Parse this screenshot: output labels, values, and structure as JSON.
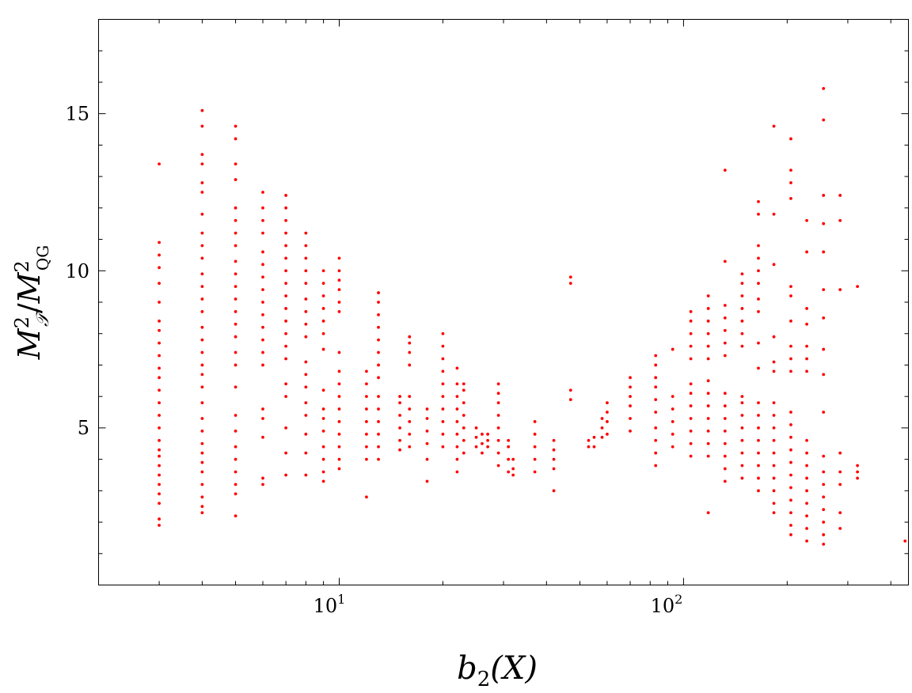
{
  "chart_data": {
    "type": "scatter",
    "title": "",
    "xlabel": {
      "base": "b",
      "sub": "2",
      "rest": "(X)"
    },
    "ylabel": {
      "num": "M",
      "num_sup": "2",
      "num_sub": "𝒯",
      "den": "M",
      "den_sup": "2",
      "den_sub": "QG"
    },
    "x_scale": "log",
    "xlim": [
      2,
      450
    ],
    "ylim": [
      0,
      18
    ],
    "grid": false,
    "x_ticks": [
      {
        "value": 10,
        "base": "10",
        "exp": "1"
      },
      {
        "value": 100,
        "base": "10",
        "exp": "2"
      }
    ],
    "y_ticks": [
      {
        "value": 5,
        "label": "5"
      },
      {
        "value": 10,
        "label": "10"
      },
      {
        "value": 15,
        "label": "15"
      }
    ],
    "marker_color": "#ff0000",
    "series": [
      {
        "columns": [
          {
            "x": 3,
            "values": [
              1.9,
              2.1,
              2.6,
              2.9,
              3.2,
              3.5,
              3.8,
              4.1,
              4.3,
              4.6,
              5.0,
              5.4,
              5.8,
              6.2,
              6.6,
              6.9,
              7.3,
              7.7,
              8.1,
              8.4,
              9.0,
              9.6,
              10.1,
              10.5,
              10.9,
              13.4
            ]
          },
          {
            "x": 4,
            "values": [
              2.3,
              2.5,
              2.8,
              3.2,
              3.6,
              3.9,
              4.2,
              4.5,
              4.9,
              5.3,
              5.8,
              6.3,
              6.7,
              7.0,
              7.4,
              7.8,
              8.2,
              8.7,
              9.1,
              9.5,
              9.9,
              10.4,
              10.8,
              11.2,
              11.8,
              12.5,
              12.8,
              13.4,
              13.7,
              14.6,
              15.1
            ]
          },
          {
            "x": 5,
            "values": [
              2.2,
              2.9,
              3.2,
              3.6,
              4.0,
              4.4,
              4.9,
              5.4,
              6.3,
              7.0,
              7.4,
              7.9,
              8.3,
              8.7,
              9.1,
              9.5,
              9.9,
              10.3,
              10.8,
              11.2,
              11.6,
              12.0,
              12.9,
              13.4,
              14.2,
              14.6
            ]
          },
          {
            "x": 6,
            "values": [
              3.2,
              3.4,
              4.7,
              5.3,
              5.6,
              7.0,
              7.4,
              7.8,
              8.2,
              8.6,
              9.0,
              9.4,
              9.8,
              10.2,
              10.6,
              11.2,
              11.6,
              12.0,
              12.5
            ]
          },
          {
            "x": 7,
            "values": [
              3.5,
              4.2,
              5.0,
              6.0,
              6.4,
              7.2,
              7.6,
              8.0,
              8.4,
              8.8,
              9.2,
              9.6,
              10.0,
              10.4,
              10.8,
              11.2,
              11.6,
              12.0,
              12.4
            ]
          },
          {
            "x": 8,
            "values": [
              3.5,
              4.2,
              4.8,
              5.4,
              5.8,
              6.3,
              6.7,
              7.1,
              7.9,
              8.3,
              8.7,
              9.1,
              9.6,
              10.0,
              10.4,
              10.8,
              11.2
            ]
          },
          {
            "x": 9,
            "values": [
              3.3,
              3.6,
              4.0,
              4.4,
              4.9,
              5.3,
              5.6,
              6.2,
              7.5,
              8.0,
              8.4,
              8.8,
              9.2,
              9.6,
              10.0
            ]
          },
          {
            "x": 10,
            "values": [
              3.7,
              4.0,
              4.4,
              4.8,
              5.2,
              5.6,
              6.0,
              6.4,
              6.8,
              7.4,
              8.7,
              9.0,
              9.4,
              9.7,
              10.0,
              10.4
            ]
          },
          {
            "x": 12,
            "values": [
              2.8,
              4.0,
              4.4,
              4.8,
              5.2,
              5.6,
              6.0,
              6.4,
              6.8
            ]
          },
          {
            "x": 13,
            "values": [
              4.0,
              4.4,
              4.8,
              5.2,
              5.6,
              6.0,
              6.6,
              7.0,
              7.4,
              7.8,
              8.2,
              8.6,
              9.0,
              9.3
            ]
          },
          {
            "x": 15,
            "values": [
              4.3,
              4.6,
              5.0,
              5.4,
              5.8,
              6.0
            ]
          },
          {
            "x": 16,
            "values": [
              4.4,
              4.8,
              5.2,
              5.6,
              6.0,
              7.0,
              7.4,
              7.7,
              7.9
            ]
          },
          {
            "x": 18,
            "values": [
              3.3,
              4.0,
              4.5,
              4.9,
              5.3,
              5.6
            ]
          },
          {
            "x": 20,
            "values": [
              4.4,
              4.8,
              5.2,
              5.6,
              6.0,
              6.4,
              6.8,
              7.2,
              7.6,
              8.0
            ]
          },
          {
            "x": 22,
            "values": [
              3.6,
              4.0,
              4.4,
              4.8,
              5.2,
              5.6,
              6.0,
              6.4,
              6.9
            ]
          },
          {
            "x": 23,
            "values": [
              4.2,
              4.6,
              5.0,
              5.4,
              5.8,
              6.2,
              6.4
            ]
          },
          {
            "x": 25,
            "values": [
              4.4,
              4.7,
              5.0
            ]
          },
          {
            "x": 26,
            "values": [
              4.2,
              4.5,
              4.8
            ]
          },
          {
            "x": 27,
            "values": [
              4.4,
              4.6,
              4.8
            ]
          },
          {
            "x": 29,
            "values": [
              3.8,
              4.2,
              4.6,
              5.0,
              5.4,
              5.8,
              6.1,
              6.4
            ]
          },
          {
            "x": 31,
            "values": [
              3.6,
              4.0,
              4.4,
              4.6
            ]
          },
          {
            "x": 32,
            "values": [
              3.5,
              3.7,
              4.0
            ]
          },
          {
            "x": 37,
            "values": [
              3.6,
              4.0,
              4.4,
              4.8,
              5.2
            ]
          },
          {
            "x": 42,
            "values": [
              3.0,
              3.7,
              4.0,
              4.3,
              4.6
            ]
          },
          {
            "x": 47,
            "values": [
              5.9,
              6.2,
              9.6,
              9.8
            ]
          },
          {
            "x": 53,
            "values": [
              4.4,
              4.6
            ]
          },
          {
            "x": 55,
            "values": [
              4.4,
              4.7
            ]
          },
          {
            "x": 58,
            "values": [
              4.7,
              5.0,
              5.3
            ]
          },
          {
            "x": 60,
            "values": [
              4.8,
              5.2,
              5.5,
              5.8
            ]
          },
          {
            "x": 70,
            "values": [
              4.9,
              5.3,
              5.7,
              6.0,
              6.3,
              6.6
            ]
          },
          {
            "x": 83,
            "values": [
              3.8,
              4.2,
              4.6,
              5.0,
              5.5,
              5.9,
              6.3,
              6.6,
              7.0,
              7.3
            ]
          },
          {
            "x": 93,
            "values": [
              4.4,
              4.8,
              5.2,
              5.6,
              6.0,
              7.5
            ]
          },
          {
            "x": 105,
            "values": [
              4.1,
              4.5,
              4.9,
              5.3,
              5.7,
              6.1,
              6.4,
              7.2,
              7.6,
              8.0,
              8.4,
              8.7
            ]
          },
          {
            "x": 118,
            "values": [
              2.3,
              4.1,
              4.5,
              4.9,
              5.3,
              5.7,
              6.1,
              6.5,
              7.2,
              7.6,
              8.0,
              8.4,
              8.8,
              9.2
            ]
          },
          {
            "x": 132,
            "values": [
              3.3,
              3.7,
              4.1,
              4.5,
              4.9,
              5.3,
              5.7,
              6.1,
              7.3,
              7.7,
              8.1,
              8.5,
              8.9,
              10.3,
              13.2
            ]
          },
          {
            "x": 148,
            "values": [
              3.4,
              3.8,
              4.2,
              4.6,
              5.0,
              5.4,
              5.8,
              6.0,
              7.6,
              8.0,
              8.4,
              8.8,
              9.2,
              9.6,
              9.9
            ]
          },
          {
            "x": 165,
            "values": [
              3.0,
              3.4,
              3.8,
              4.2,
              4.6,
              5.0,
              5.4,
              5.8,
              6.9,
              7.7,
              8.7,
              9.1,
              9.6,
              10.0,
              10.4,
              10.8,
              11.8,
              12.2
            ]
          },
          {
            "x": 183,
            "values": [
              2.3,
              2.6,
              3.0,
              3.4,
              3.8,
              4.2,
              4.6,
              5.0,
              5.4,
              5.8,
              6.8,
              7.1,
              7.9,
              10.2,
              11.8,
              14.6
            ]
          },
          {
            "x": 205,
            "values": [
              1.6,
              1.9,
              2.3,
              2.7,
              3.1,
              3.5,
              3.9,
              4.3,
              4.7,
              5.1,
              5.5,
              6.8,
              7.2,
              7.6,
              8.4,
              9.2,
              9.5,
              12.3,
              12.8,
              13.2,
              14.2
            ]
          },
          {
            "x": 228,
            "values": [
              1.4,
              1.8,
              2.2,
              2.6,
              3.0,
              3.4,
              3.8,
              4.2,
              4.6,
              6.8,
              7.2,
              7.6,
              8.3,
              8.8,
              10.6,
              11.6
            ]
          },
          {
            "x": 255,
            "values": [
              1.3,
              1.6,
              2.0,
              2.4,
              2.8,
              3.2,
              3.6,
              4.1,
              5.5,
              6.7,
              7.5,
              8.5,
              9.4,
              10.6,
              11.5,
              12.4,
              14.8,
              15.8
            ]
          },
          {
            "x": 285,
            "values": [
              1.8,
              2.3,
              3.2,
              3.6,
              4.2,
              9.4,
              11.6,
              12.4
            ]
          },
          {
            "x": 320,
            "values": [
              3.4,
              3.6,
              3.8,
              9.5
            ]
          },
          {
            "x": 440,
            "values": [
              1.4
            ]
          }
        ]
      }
    ]
  }
}
